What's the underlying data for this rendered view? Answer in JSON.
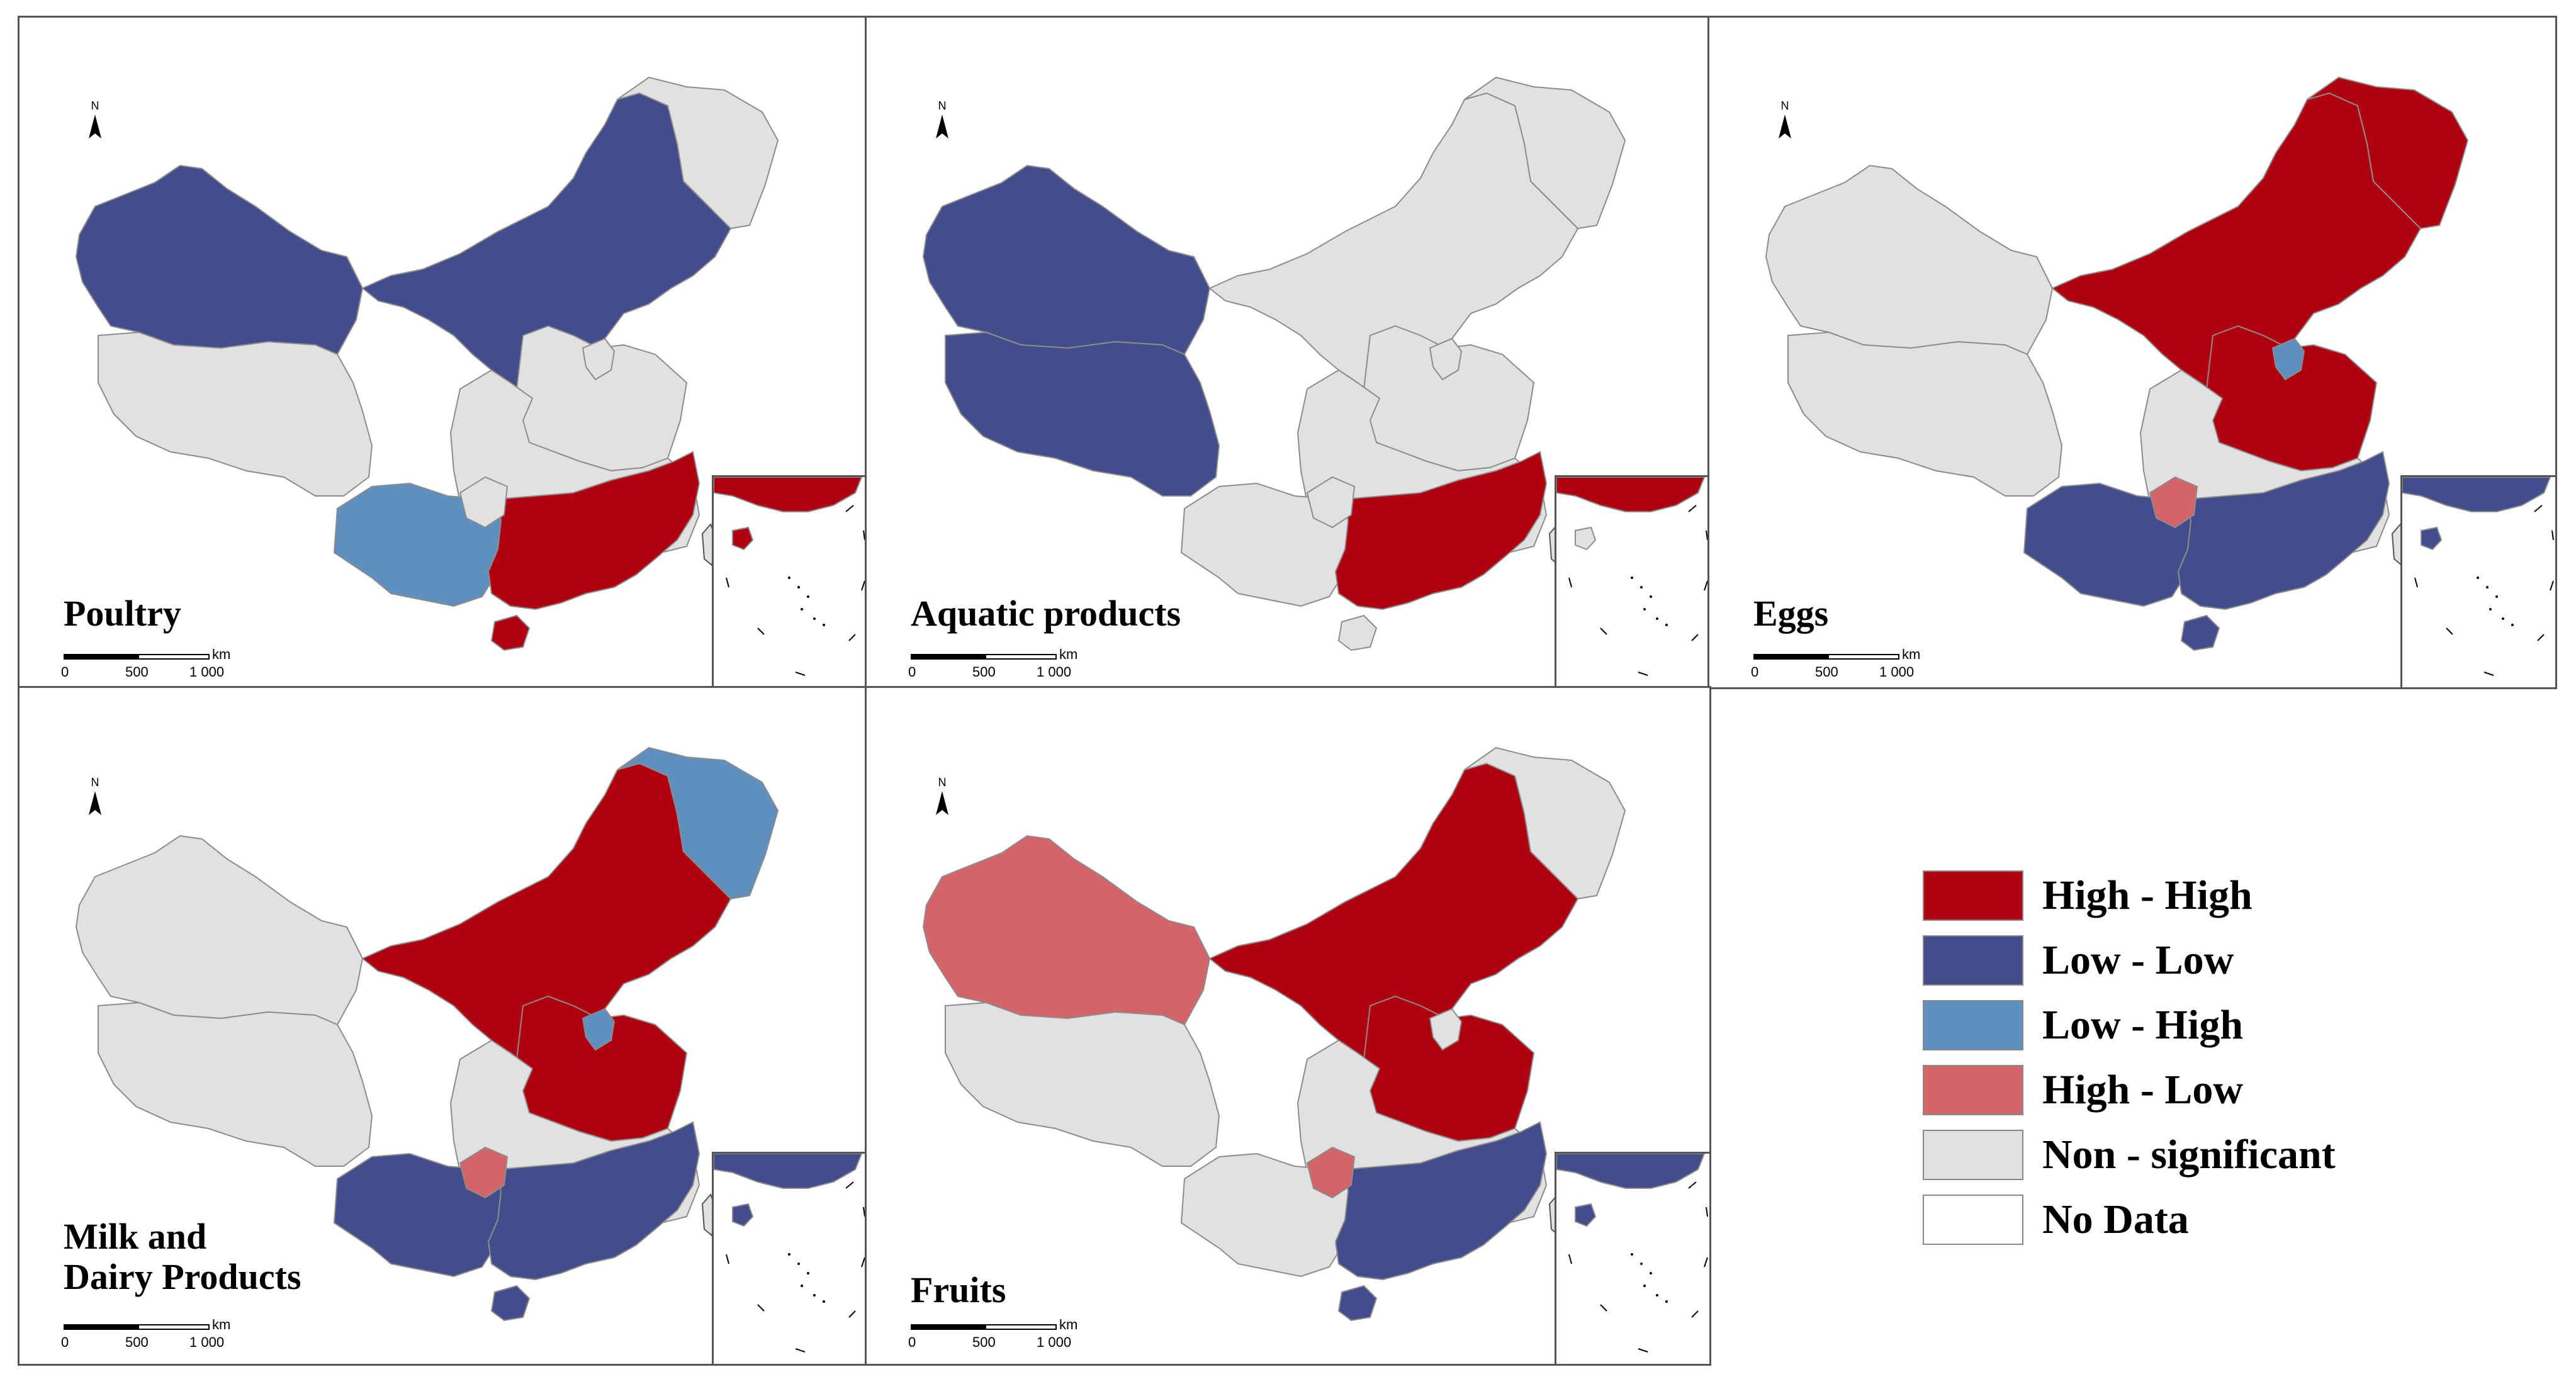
{
  "colors": {
    "high_high": "#b00010",
    "low_low": "#434d8c",
    "low_high": "#5f8fbe",
    "high_low": "#d46468",
    "non_significant": "#e1e1e1",
    "no_data": "#ffffff",
    "boundary": "#8c8c8c"
  },
  "north_label": "N",
  "scale": {
    "unit": "km",
    "ticks": [
      "0",
      "500",
      "1 000"
    ]
  },
  "panels": [
    {
      "title": "Poultry",
      "regions": {
        "northwest": "low_low",
        "north": "low_low",
        "northeast": "non_significant",
        "tibet": "non_significant",
        "central": "non_significant",
        "north_china_plain": "non_significant",
        "southwest": "low_high",
        "south": "high_high",
        "hainan": "high_high",
        "beijing_area": "non_significant",
        "chongqing_area": "non_significant"
      }
    },
    {
      "title": "Aquatic products",
      "regions": {
        "northwest": "low_low",
        "north": "non_significant",
        "northeast": "non_significant",
        "tibet": "low_low",
        "central": "non_significant",
        "north_china_plain": "non_significant",
        "southwest": "non_significant",
        "south": "high_high",
        "hainan": "non_significant",
        "beijing_area": "non_significant",
        "chongqing_area": "non_significant"
      }
    },
    {
      "title": "Eggs",
      "regions": {
        "northwest": "non_significant",
        "north": "high_high",
        "northeast": "high_high",
        "tibet": "non_significant",
        "central": "non_significant",
        "north_china_plain": "high_high",
        "southwest": "low_low",
        "south": "low_low",
        "hainan": "low_low",
        "beijing_area": "low_high",
        "chongqing_area": "high_low"
      }
    },
    {
      "title": "Milk and\nDairy Products",
      "regions": {
        "northwest": "non_significant",
        "north": "high_high",
        "northeast": "low_high",
        "tibet": "non_significant",
        "central": "non_significant",
        "north_china_plain": "high_high",
        "southwest": "low_low",
        "south": "low_low",
        "hainan": "low_low",
        "beijing_area": "low_high",
        "chongqing_area": "high_low"
      }
    },
    {
      "title": "Fruits",
      "regions": {
        "northwest": "high_low",
        "north": "high_high",
        "northeast": "non_significant",
        "tibet": "non_significant",
        "central": "non_significant",
        "north_china_plain": "high_high",
        "southwest": "non_significant",
        "south": "low_low",
        "hainan": "low_low",
        "beijing_area": "non_significant",
        "chongqing_area": "high_low"
      }
    }
  ],
  "legend": [
    {
      "label": "High - High",
      "color": "#b00010"
    },
    {
      "label": "Low - Low",
      "color": "#434d8c"
    },
    {
      "label": "Low - High",
      "color": "#5f8fbe"
    },
    {
      "label": "High - Low",
      "color": "#d46468"
    },
    {
      "label": "Non - significant",
      "color": "#e1e1e1"
    },
    {
      "label": "No Data",
      "color": "#ffffff"
    }
  ]
}
